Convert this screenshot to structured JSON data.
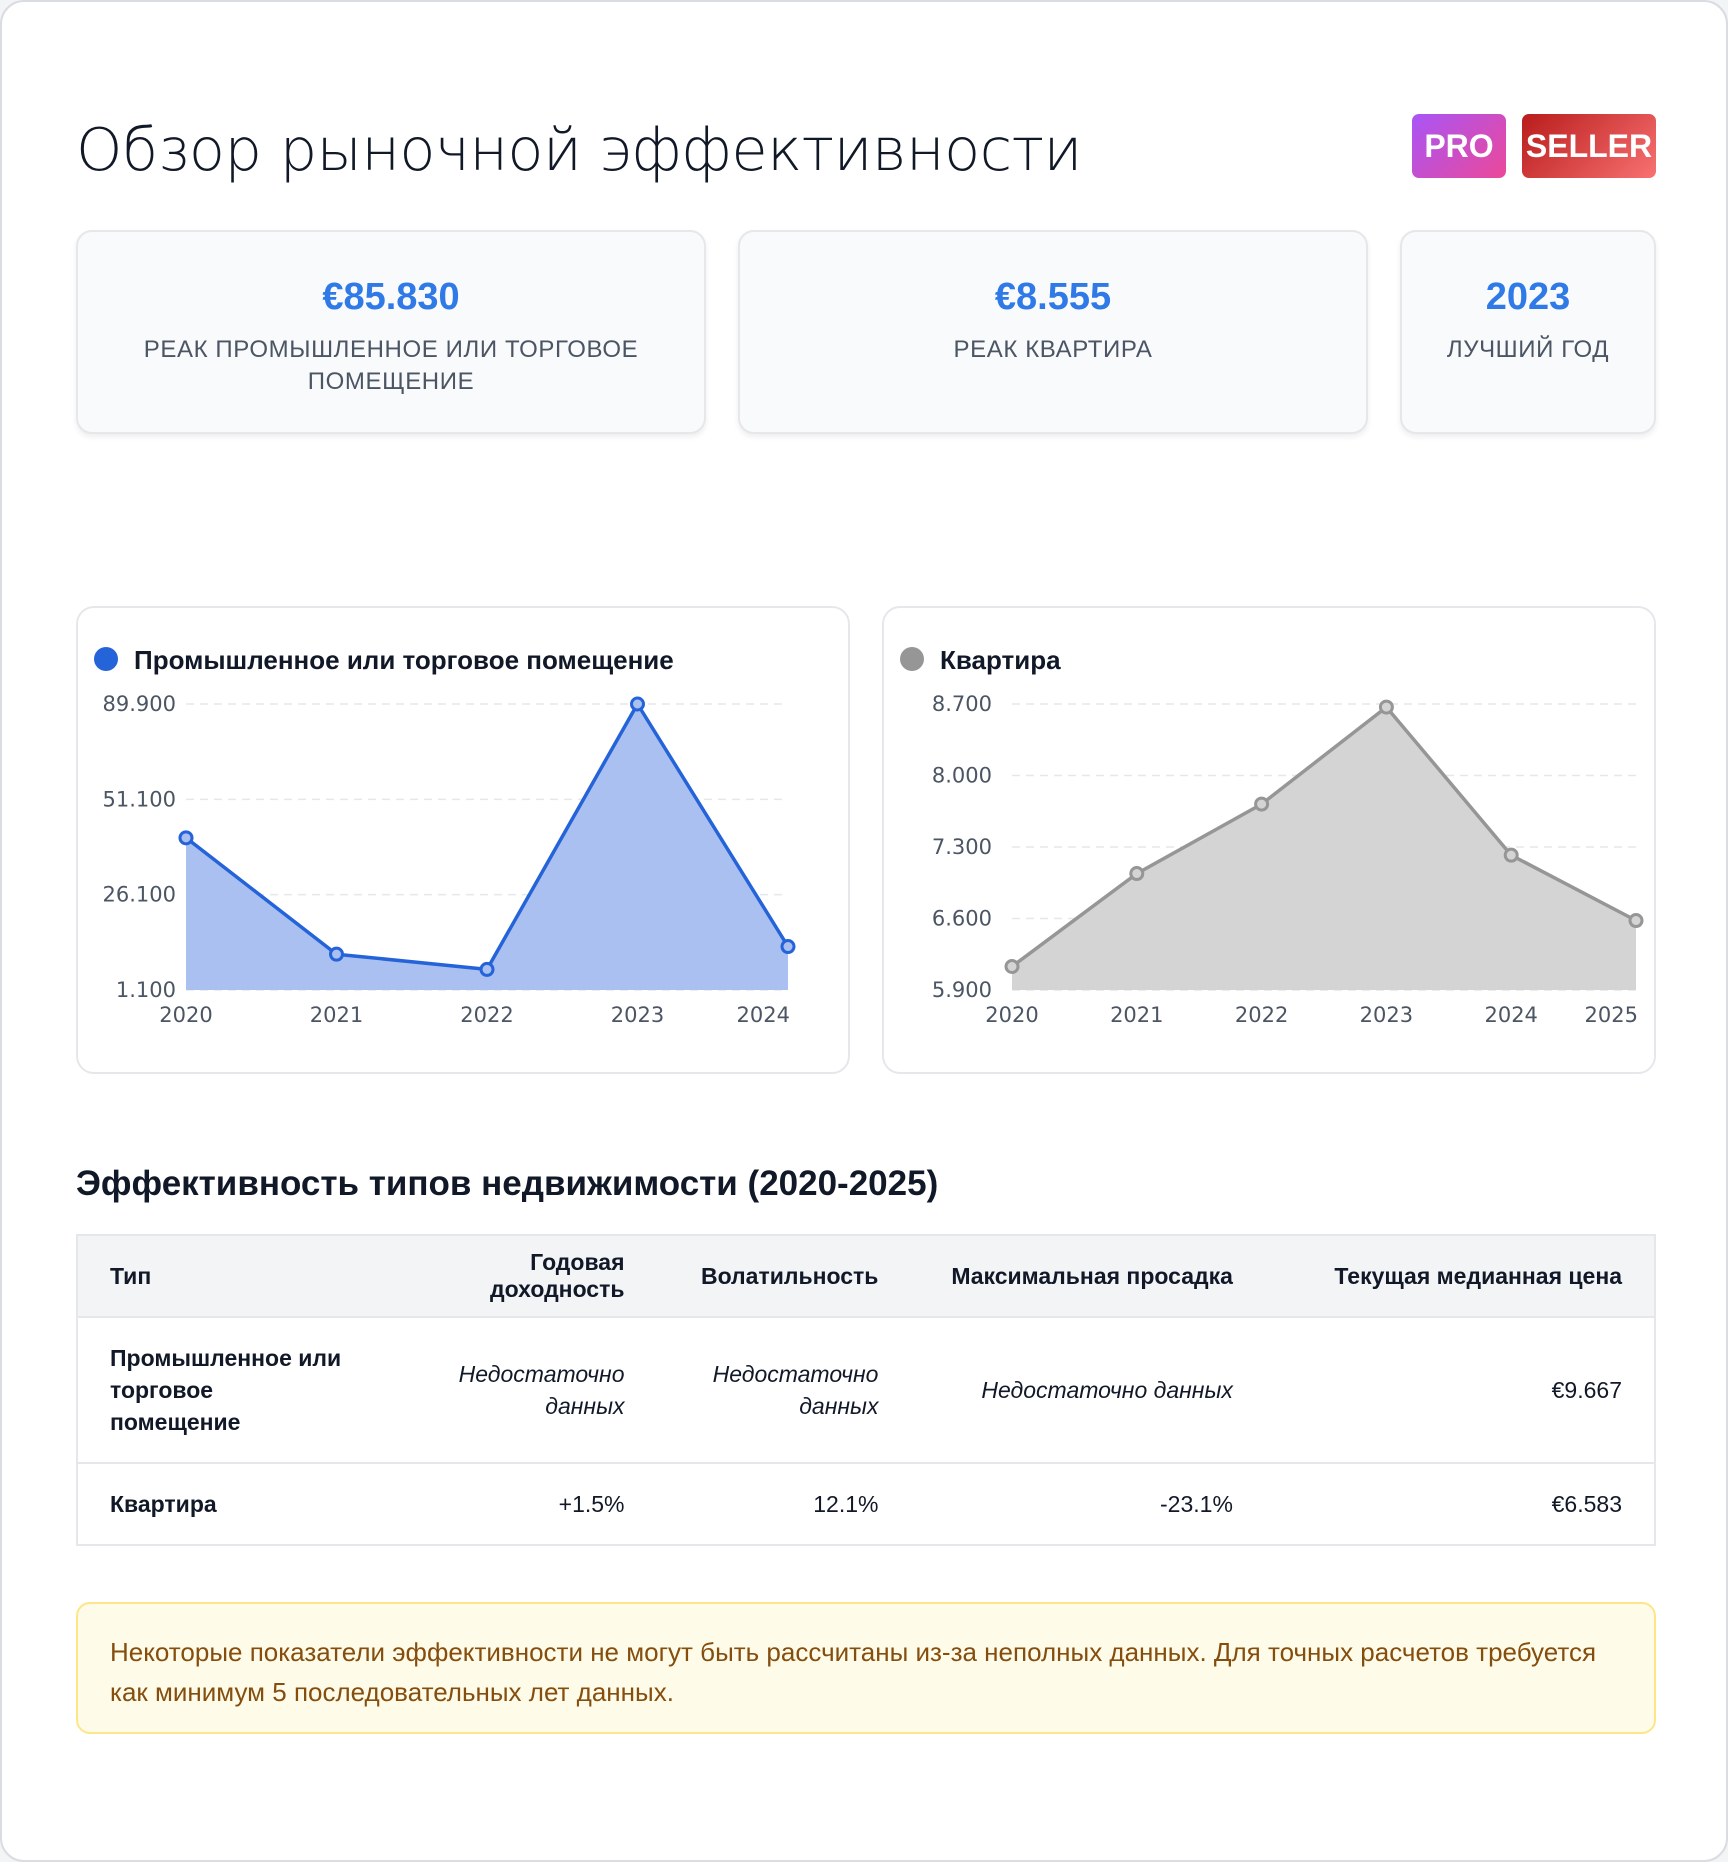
{
  "header": {
    "title": "Обзор рыночной эффективности",
    "badges": [
      "PRO",
      "SELLER"
    ]
  },
  "stats": [
    {
      "value": "€85.830",
      "label": "РЕАК ПРОМЫШЛЕННОЕ ИЛИ ТОРГОВОЕ ПОМЕЩЕНИЕ"
    },
    {
      "value": "€8.555",
      "label": "РЕАК КВАРТИРА"
    },
    {
      "value": "2023",
      "label": "ЛУЧШИЙ ГОД"
    }
  ],
  "charts": {
    "commercial": {
      "title": "Промышленное или торговое помещение",
      "color": "#2563d9",
      "fill": "#a9c0f0"
    },
    "apartment": {
      "title": "Квартира",
      "color": "#969696",
      "fill": "#d4d4d4"
    }
  },
  "chart_data": [
    {
      "type": "area",
      "title": "Промышленное или торговое помещение",
      "x": [
        "2020",
        "2021",
        "2022",
        "2023",
        "2024"
      ],
      "series": [
        {
          "name": "Промышленное или торговое помещение",
          "values": [
            41000,
            10500,
            6500,
            89900,
            12500
          ]
        }
      ],
      "y_ticks": [
        "89.900",
        "51.100",
        "26.100",
        "1.100"
      ],
      "y_tick_values": [
        89900,
        51100,
        26100,
        1100
      ],
      "grid": "horizontal dashed"
    },
    {
      "type": "area",
      "title": "Квартира",
      "x": [
        "2020",
        "2021",
        "2022",
        "2023",
        "2024",
        "2025"
      ],
      "series": [
        {
          "name": "Квартира",
          "values": [
            6130,
            7040,
            7720,
            8670,
            7220,
            6580
          ]
        }
      ],
      "y_ticks": [
        "8.700",
        "8.000",
        "7.300",
        "6.600",
        "5.900"
      ],
      "y_tick_values": [
        8700,
        8000,
        7300,
        6600,
        5900
      ],
      "grid": "horizontal dashed"
    }
  ],
  "table": {
    "title": "Эффективность типов недвижимости (2020-2025)",
    "columns": [
      "Тип",
      "Годовая доходность",
      "Волатильность",
      "Максимальная просадка",
      "Текущая медианная цена"
    ],
    "rows": [
      {
        "type": "Промышленное или торговое помещение",
        "annual_return": "Недостаточно данных",
        "volatility": "Недостаточно данных",
        "max_drawdown": "Недостаточно данных",
        "median_price": "€9.667"
      },
      {
        "type": "Квартира",
        "annual_return": "+1.5%",
        "volatility": "12.1%",
        "max_drawdown": "-23.1%",
        "median_price": "€6.583"
      }
    ]
  },
  "notice": "Некоторые показатели эффективности не могут быть рассчитаны из-за неполных данных. Для точных расчетов требуется как минимум 5 последовательных лет данных."
}
